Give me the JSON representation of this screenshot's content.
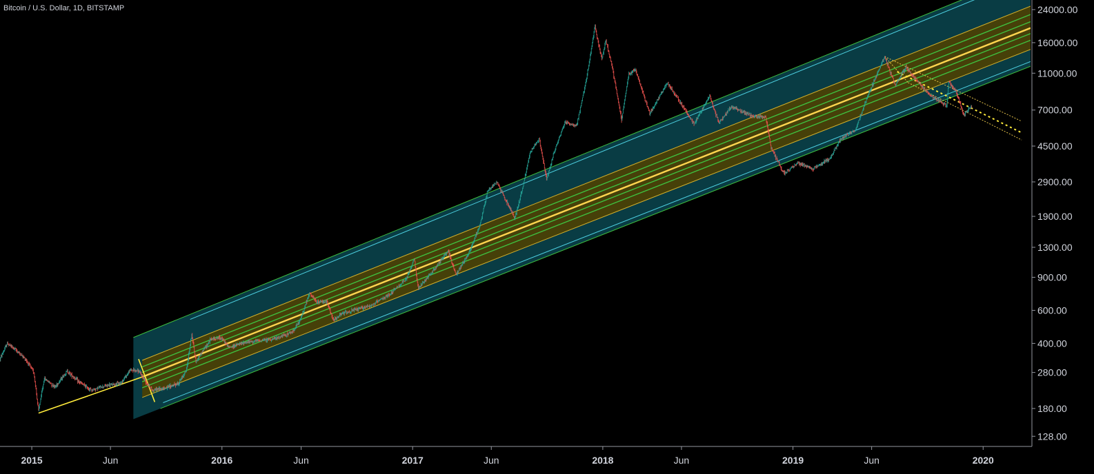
{
  "header": {
    "symbol_title": "Bitcoin / U.S. Dollar, 1D, BITSTAMP"
  },
  "colors": {
    "background": "#000000",
    "axis_line": "#9598a1",
    "axis_text": "#d1d4dc",
    "candle_up": "#26a69a",
    "candle_down": "#ef5350",
    "channel_median": "#ffd54f",
    "channel_yellow_band": "#4a4006",
    "channel_teal_band": "#0b4650",
    "channel_green_line": "#3fbf3f",
    "channel_cyan_line": "#4dd0e1",
    "anchor_line": "#ffeb3b",
    "pullback_channel": "#e6c34a"
  },
  "chart_data": {
    "type": "candlestick-with-pitchfork",
    "title": "Bitcoin / U.S. Dollar, 1D, BITSTAMP",
    "scale": "log",
    "y_axis_position": "right",
    "xlim": [
      "2014-11-01",
      "2020-04-01"
    ],
    "ylim": [
      113,
      27000
    ],
    "y_ticks": [
      "24000.00",
      "16000.00",
      "11000.00",
      "7000.00",
      "4500.00",
      "2900.00",
      "1900.00",
      "1300.00",
      "900.00",
      "600.00",
      "400.00",
      "280.00",
      "180.00",
      "128.00"
    ],
    "x_ticks": [
      "2015",
      "Jun",
      "2016",
      "Jun",
      "2017",
      "Jun",
      "2018",
      "Jun",
      "2019",
      "Jun",
      "2020"
    ],
    "price_path": [
      [
        "2014-11-01",
        330
      ],
      [
        "2014-11-15",
        400
      ],
      [
        "2014-12-01",
        370
      ],
      [
        "2014-12-20",
        330
      ],
      [
        "2015-01-05",
        280
      ],
      [
        "2015-01-14",
        175
      ],
      [
        "2015-01-25",
        260
      ],
      [
        "2015-02-15",
        235
      ],
      [
        "2015-03-10",
        285
      ],
      [
        "2015-04-01",
        250
      ],
      [
        "2015-04-25",
        225
      ],
      [
        "2015-05-20",
        237
      ],
      [
        "2015-06-20",
        245
      ],
      [
        "2015-07-10",
        290
      ],
      [
        "2015-07-25",
        285
      ],
      [
        "2015-08-20",
        225
      ],
      [
        "2015-09-15",
        232
      ],
      [
        "2015-10-10",
        245
      ],
      [
        "2015-10-25",
        290
      ],
      [
        "2015-11-04",
        450
      ],
      [
        "2015-11-12",
        320
      ],
      [
        "2015-12-10",
        420
      ],
      [
        "2015-12-30",
        430
      ],
      [
        "2016-01-15",
        380
      ],
      [
        "2016-02-15",
        405
      ],
      [
        "2016-03-15",
        415
      ],
      [
        "2016-04-15",
        425
      ],
      [
        "2016-05-15",
        460
      ],
      [
        "2016-05-30",
        530
      ],
      [
        "2016-06-17",
        740
      ],
      [
        "2016-07-01",
        660
      ],
      [
        "2016-07-20",
        670
      ],
      [
        "2016-08-02",
        530
      ],
      [
        "2016-08-20",
        580
      ],
      [
        "2016-09-15",
        605
      ],
      [
        "2016-10-15",
        640
      ],
      [
        "2016-11-15",
        720
      ],
      [
        "2016-12-20",
        880
      ],
      [
        "2017-01-04",
        1130
      ],
      [
        "2017-01-12",
        780
      ],
      [
        "2017-02-15",
        1020
      ],
      [
        "2017-03-10",
        1250
      ],
      [
        "2017-03-25",
        930
      ],
      [
        "2017-04-20",
        1230
      ],
      [
        "2017-05-10",
        1700
      ],
      [
        "2017-05-25",
        2600
      ],
      [
        "2017-06-12",
        2900
      ],
      [
        "2017-07-16",
        1850
      ],
      [
        "2017-08-01",
        2750
      ],
      [
        "2017-08-15",
        4200
      ],
      [
        "2017-09-01",
        4900
      ],
      [
        "2017-09-15",
        3000
      ],
      [
        "2017-10-01",
        4300
      ],
      [
        "2017-10-20",
        6000
      ],
      [
        "2017-11-12",
        5800
      ],
      [
        "2017-11-30",
        10000
      ],
      [
        "2017-12-17",
        19500
      ],
      [
        "2017-12-30",
        13000
      ],
      [
        "2018-01-07",
        16500
      ],
      [
        "2018-01-20",
        11500
      ],
      [
        "2018-02-06",
        6200
      ],
      [
        "2018-02-20",
        11000
      ],
      [
        "2018-03-05",
        11400
      ],
      [
        "2018-04-01",
        6700
      ],
      [
        "2018-05-05",
        9800
      ],
      [
        "2018-06-01",
        7500
      ],
      [
        "2018-06-25",
        5900
      ],
      [
        "2018-07-25",
        8300
      ],
      [
        "2018-08-12",
        6000
      ],
      [
        "2018-09-05",
        7300
      ],
      [
        "2018-10-15",
        6500
      ],
      [
        "2018-11-10",
        6400
      ],
      [
        "2018-11-20",
        4400
      ],
      [
        "2018-12-15",
        3200
      ],
      [
        "2019-01-10",
        3650
      ],
      [
        "2019-02-08",
        3400
      ],
      [
        "2019-03-15",
        3900
      ],
      [
        "2019-04-02",
        4900
      ],
      [
        "2019-05-01",
        5500
      ],
      [
        "2019-05-25",
        8400
      ],
      [
        "2019-06-26",
        13500
      ],
      [
        "2019-07-16",
        9500
      ],
      [
        "2019-08-06",
        11900
      ],
      [
        "2019-09-01",
        9600
      ],
      [
        "2019-09-24",
        8300
      ],
      [
        "2019-10-23",
        7400
      ],
      [
        "2019-10-27",
        9900
      ],
      [
        "2019-11-10",
        8800
      ],
      [
        "2019-11-25",
        6600
      ],
      [
        "2019-12-10",
        7300
      ]
    ],
    "anchor_line": [
      [
        "2015-01-14",
        170
      ],
      [
        "2015-08-01",
        265
      ]
    ],
    "pitchfork": {
      "median": [
        [
          "2015-08-01",
          265
        ],
        [
          "2019-12-31",
          15200
        ]
      ],
      "yellow_band_upper": [
        [
          "2015-08-01",
          325
        ],
        [
          "2019-12-31",
          19800
        ]
      ],
      "yellow_band_lower": [
        [
          "2015-08-01",
          206
        ],
        [
          "2019-12-31",
          11700
        ]
      ],
      "green_lines": [
        [
          [
            "2015-08-01",
            300
          ],
          [
            "2019-12-31",
            17900
          ]
        ],
        [
          [
            "2015-08-01",
            280
          ],
          [
            "2019-12-31",
            16400
          ]
        ],
        [
          [
            "2015-08-01",
            250
          ],
          [
            "2019-12-31",
            14200
          ]
        ],
        [
          [
            "2015-08-01",
            232
          ],
          [
            "2019-12-31",
            13100
          ]
        ]
      ],
      "outer_upper": [
        [
          "2015-07-15",
          430
        ],
        [
          "2019-12-31",
          30000
        ]
      ],
      "outer_lower": [
        [
          "2015-09-05",
          180
        ],
        [
          "2019-12-31",
          9500
        ]
      ]
    },
    "pullback_channel": {
      "upper": [
        [
          "2019-06-26",
          13500
        ],
        [
          "2020-03-15",
          6100
        ]
      ],
      "lower": [
        [
          "2019-08-10",
          9800
        ],
        [
          "2020-03-15",
          4850
        ]
      ],
      "mid_dotted": [
        [
          "2019-07-20",
          11200
        ],
        [
          "2020-03-15",
          5300
        ]
      ]
    }
  }
}
